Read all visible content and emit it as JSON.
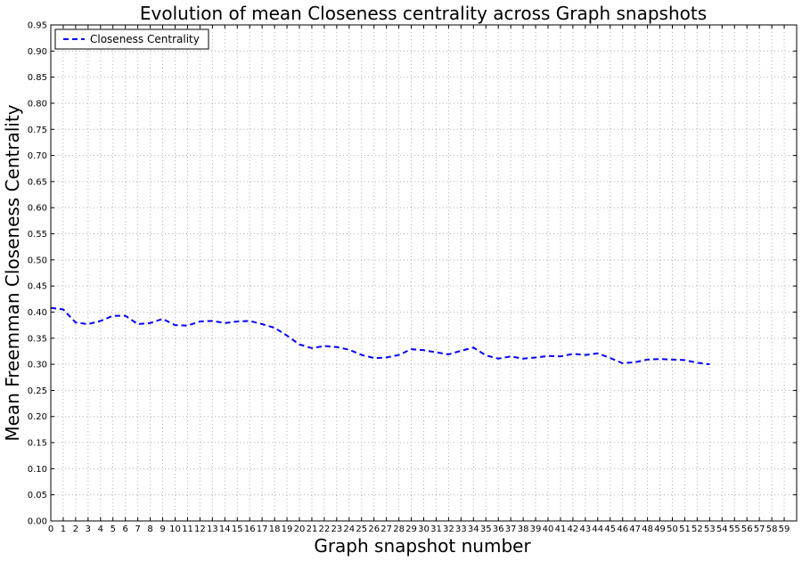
{
  "chart_data": {
    "type": "line",
    "title": "Evolution of mean Closeness centrality across Graph snapshots",
    "xlabel": "Graph snapshot number",
    "ylabel": "Mean Freemman Closeness Centrality",
    "xlim": [
      0,
      60
    ],
    "ylim": [
      0,
      0.95
    ],
    "xticks": [
      "0",
      "1",
      "2",
      "3",
      "4",
      "5",
      "6",
      "7",
      "8",
      "9",
      "10",
      "11",
      "12",
      "13",
      "14",
      "15",
      "16",
      "17",
      "18",
      "19",
      "20",
      "21",
      "22",
      "23",
      "24",
      "25",
      "26",
      "27",
      "28",
      "29",
      "30",
      "31",
      "32",
      "33",
      "34",
      "35",
      "36",
      "37",
      "38",
      "39",
      "40",
      "41",
      "42",
      "43",
      "44",
      "45",
      "46",
      "47",
      "48",
      "49",
      "50",
      "51",
      "52",
      "53",
      "54",
      "55",
      "56",
      "57",
      "58",
      "59"
    ],
    "yticks": [
      "0.00",
      "0.05",
      "0.10",
      "0.15",
      "0.20",
      "0.25",
      "0.30",
      "0.35",
      "0.40",
      "0.45",
      "0.50",
      "0.55",
      "0.60",
      "0.65",
      "0.70",
      "0.75",
      "0.80",
      "0.85",
      "0.90",
      "0.95"
    ],
    "grid": true,
    "legend_position": "top-left",
    "series": [
      {
        "name": "Closeness Centrality",
        "color": "#0000ff",
        "line_style": "dashed",
        "x": [
          0,
          1,
          2,
          3,
          4,
          5,
          6,
          7,
          8,
          9,
          10,
          11,
          12,
          13,
          14,
          15,
          16,
          17,
          18,
          19,
          20,
          21,
          22,
          23,
          24,
          25,
          26,
          27,
          28,
          29,
          30,
          31,
          32,
          33,
          34,
          35,
          36,
          37,
          38,
          39,
          40,
          41,
          42,
          43,
          44,
          45,
          46,
          47,
          48,
          49,
          50,
          51,
          52,
          53
        ],
        "y": [
          0.408,
          0.405,
          0.38,
          0.377,
          0.383,
          0.393,
          0.393,
          0.377,
          0.379,
          0.387,
          0.375,
          0.374,
          0.382,
          0.383,
          0.379,
          0.382,
          0.383,
          0.377,
          0.37,
          0.355,
          0.338,
          0.331,
          0.335,
          0.333,
          0.328,
          0.318,
          0.312,
          0.313,
          0.318,
          0.329,
          0.327,
          0.323,
          0.319,
          0.326,
          0.332,
          0.317,
          0.311,
          0.315,
          0.311,
          0.313,
          0.316,
          0.315,
          0.32,
          0.318,
          0.321,
          0.312,
          0.302,
          0.304,
          0.309,
          0.31,
          0.309,
          0.308,
          0.303,
          0.3
        ]
      }
    ]
  }
}
